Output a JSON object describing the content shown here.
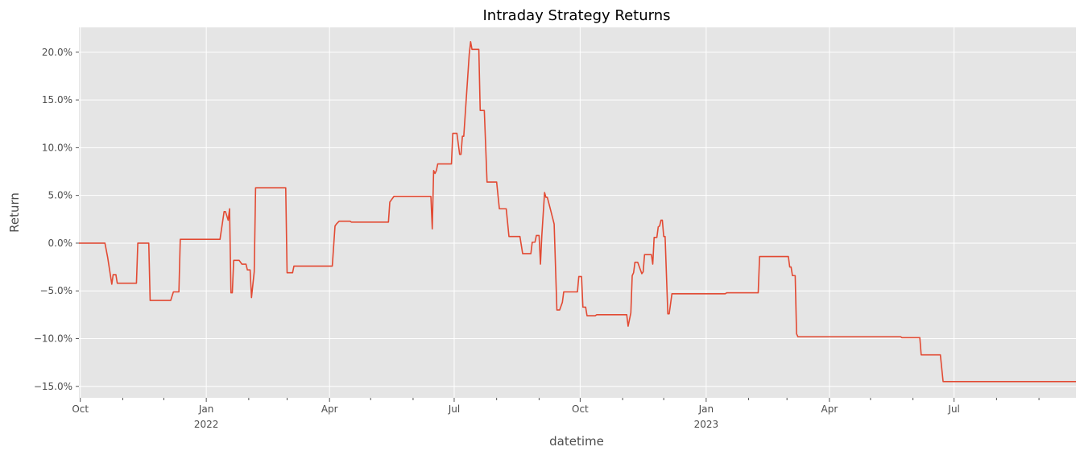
{
  "chart_data": {
    "type": "line",
    "title": "Intraday Strategy Returns",
    "xlabel": "datetime",
    "ylabel": "Return",
    "xlim": [
      "2021-09-30",
      "2023-09-28"
    ],
    "ylim": [
      -0.162,
      0.226
    ],
    "grid": true,
    "background": "#E5E5E5",
    "line_color": "#E24A33",
    "y_ticks": [
      {
        "value": 0.2,
        "label": "20.0%"
      },
      {
        "value": 0.15,
        "label": "15.0%"
      },
      {
        "value": 0.1,
        "label": "10.0%"
      },
      {
        "value": 0.05,
        "label": "5.0%"
      },
      {
        "value": 0.0,
        "label": "0.0%"
      },
      {
        "value": -0.05,
        "label": "−5.0%"
      },
      {
        "value": -0.1,
        "label": "−10.0%"
      },
      {
        "value": -0.15,
        "label": "−15.0%"
      }
    ],
    "x_major_ticks": [
      {
        "date": "2021-10-01",
        "label": "Oct",
        "sublabel": ""
      },
      {
        "date": "2022-01-01",
        "label": "Jan",
        "sublabel": "2022"
      },
      {
        "date": "2022-04-01",
        "label": "Apr",
        "sublabel": ""
      },
      {
        "date": "2022-07-01",
        "label": "Jul",
        "sublabel": ""
      },
      {
        "date": "2022-10-01",
        "label": "Oct",
        "sublabel": ""
      },
      {
        "date": "2023-01-01",
        "label": "Jan",
        "sublabel": "2023"
      },
      {
        "date": "2023-04-01",
        "label": "Apr",
        "sublabel": ""
      },
      {
        "date": "2023-07-01",
        "label": "Jul",
        "sublabel": ""
      }
    ],
    "x_minor_ticks": [
      "2021-11-01",
      "2021-12-01",
      "2022-02-01",
      "2022-03-01",
      "2022-05-01",
      "2022-06-01",
      "2022-08-01",
      "2022-09-01",
      "2022-11-01",
      "2022-12-01",
      "2023-02-01",
      "2023-03-01",
      "2023-05-01",
      "2023-06-01",
      "2023-08-01",
      "2023-09-01"
    ],
    "series": [
      {
        "points": [
          [
            "2021-09-30",
            0.0
          ],
          [
            "2021-10-19",
            0.0
          ],
          [
            "2021-10-21",
            -0.015
          ],
          [
            "2021-10-24",
            -0.043
          ],
          [
            "2021-10-25",
            -0.033
          ],
          [
            "2021-10-27",
            -0.033
          ],
          [
            "2021-10-28",
            -0.042
          ],
          [
            "2021-11-11",
            -0.042
          ],
          [
            "2021-11-12",
            0.0
          ],
          [
            "2021-11-20",
            0.0
          ],
          [
            "2021-11-21",
            -0.06
          ],
          [
            "2021-12-06",
            -0.06
          ],
          [
            "2021-12-08",
            -0.051
          ],
          [
            "2021-12-12",
            -0.051
          ],
          [
            "2021-12-13",
            0.004
          ],
          [
            "2022-01-11",
            0.004
          ],
          [
            "2022-01-14",
            0.033
          ],
          [
            "2022-01-15",
            0.033
          ],
          [
            "2022-01-17",
            0.024
          ],
          [
            "2022-01-18",
            0.036
          ],
          [
            "2022-01-19",
            -0.052
          ],
          [
            "2022-01-20",
            -0.052
          ],
          [
            "2022-01-21",
            -0.018
          ],
          [
            "2022-01-25",
            -0.018
          ],
          [
            "2022-01-27",
            -0.022
          ],
          [
            "2022-01-30",
            -0.022
          ],
          [
            "2022-01-31",
            -0.028
          ],
          [
            "2022-02-02",
            -0.028
          ],
          [
            "2022-02-03",
            -0.057
          ],
          [
            "2022-02-05",
            -0.03
          ],
          [
            "2022-02-06",
            0.058
          ],
          [
            "2022-02-28",
            0.058
          ],
          [
            "2022-03-01",
            -0.031
          ],
          [
            "2022-03-05",
            -0.031
          ],
          [
            "2022-03-06",
            -0.024
          ],
          [
            "2022-04-03",
            -0.024
          ],
          [
            "2022-04-05",
            0.018
          ],
          [
            "2022-04-06",
            0.02
          ],
          [
            "2022-04-08",
            0.023
          ],
          [
            "2022-04-16",
            0.023
          ],
          [
            "2022-04-17",
            0.022
          ],
          [
            "2022-05-14",
            0.022
          ],
          [
            "2022-05-15",
            0.043
          ],
          [
            "2022-05-16",
            0.045
          ],
          [
            "2022-05-18",
            0.049
          ],
          [
            "2022-06-14",
            0.049
          ],
          [
            "2022-06-15",
            0.015
          ],
          [
            "2022-06-16",
            0.076
          ],
          [
            "2022-06-17",
            0.073
          ],
          [
            "2022-06-18",
            0.076
          ],
          [
            "2022-06-19",
            0.083
          ],
          [
            "2022-06-29",
            0.083
          ],
          [
            "2022-06-30",
            0.115
          ],
          [
            "2022-07-03",
            0.115
          ],
          [
            "2022-07-05",
            0.093
          ],
          [
            "2022-07-06",
            0.093
          ],
          [
            "2022-07-07",
            0.112
          ],
          [
            "2022-07-08",
            0.112
          ],
          [
            "2022-07-12",
            0.198
          ],
          [
            "2022-07-13",
            0.211
          ],
          [
            "2022-07-14",
            0.203
          ],
          [
            "2022-07-19",
            0.203
          ],
          [
            "2022-07-20",
            0.139
          ],
          [
            "2022-07-23",
            0.139
          ],
          [
            "2022-07-25",
            0.064
          ],
          [
            "2022-08-01",
            0.064
          ],
          [
            "2022-08-03",
            0.036
          ],
          [
            "2022-08-08",
            0.036
          ],
          [
            "2022-08-10",
            0.007
          ],
          [
            "2022-08-18",
            0.007
          ],
          [
            "2022-08-20",
            -0.011
          ],
          [
            "2022-08-26",
            -0.011
          ],
          [
            "2022-08-27",
            0.001
          ],
          [
            "2022-08-29",
            0.001
          ],
          [
            "2022-08-30",
            0.008
          ],
          [
            "2022-09-01",
            0.008
          ],
          [
            "2022-09-02",
            -0.022
          ],
          [
            "2022-09-03",
            0.008
          ],
          [
            "2022-09-05",
            0.053
          ],
          [
            "2022-09-06",
            0.048
          ],
          [
            "2022-09-07",
            0.048
          ],
          [
            "2022-09-09",
            0.037
          ],
          [
            "2022-09-12",
            0.02
          ],
          [
            "2022-09-14",
            -0.07
          ],
          [
            "2022-09-16",
            -0.07
          ],
          [
            "2022-09-18",
            -0.062
          ],
          [
            "2022-09-19",
            -0.051
          ],
          [
            "2022-09-29",
            -0.051
          ],
          [
            "2022-09-30",
            -0.035
          ],
          [
            "2022-10-02",
            -0.035
          ],
          [
            "2022-10-03",
            -0.067
          ],
          [
            "2022-10-05",
            -0.067
          ],
          [
            "2022-10-06",
            -0.076
          ],
          [
            "2022-10-12",
            -0.076
          ],
          [
            "2022-10-13",
            -0.075
          ],
          [
            "2022-11-04",
            -0.075
          ],
          [
            "2022-11-05",
            -0.087
          ],
          [
            "2022-11-07",
            -0.073
          ],
          [
            "2022-11-08",
            -0.034
          ],
          [
            "2022-11-09",
            -0.031
          ],
          [
            "2022-11-10",
            -0.02
          ],
          [
            "2022-11-12",
            -0.02
          ],
          [
            "2022-11-15",
            -0.032
          ],
          [
            "2022-11-16",
            -0.03
          ],
          [
            "2022-11-17",
            -0.012
          ],
          [
            "2022-11-22",
            -0.012
          ],
          [
            "2022-11-23",
            -0.022
          ],
          [
            "2022-11-24",
            0.006
          ],
          [
            "2022-11-26",
            0.006
          ],
          [
            "2022-11-27",
            0.017
          ],
          [
            "2022-11-28",
            0.018
          ],
          [
            "2022-11-29",
            0.024
          ],
          [
            "2022-11-30",
            0.024
          ],
          [
            "2022-12-01",
            0.007
          ],
          [
            "2022-12-02",
            0.007
          ],
          [
            "2022-12-04",
            -0.074
          ],
          [
            "2022-12-05",
            -0.074
          ],
          [
            "2022-12-07",
            -0.053
          ],
          [
            "2023-01-15",
            -0.053
          ],
          [
            "2023-01-16",
            -0.052
          ],
          [
            "2023-02-08",
            -0.052
          ],
          [
            "2023-02-09",
            -0.014
          ],
          [
            "2023-03-02",
            -0.014
          ],
          [
            "2023-03-03",
            -0.025
          ],
          [
            "2023-03-04",
            -0.025
          ],
          [
            "2023-03-05",
            -0.034
          ],
          [
            "2023-03-07",
            -0.034
          ],
          [
            "2023-03-08",
            -0.095
          ],
          [
            "2023-03-09",
            -0.098
          ],
          [
            "2023-05-23",
            -0.098
          ],
          [
            "2023-05-24",
            -0.099
          ],
          [
            "2023-06-06",
            -0.099
          ],
          [
            "2023-06-07",
            -0.117
          ],
          [
            "2023-06-21",
            -0.117
          ],
          [
            "2023-06-23",
            -0.145
          ],
          [
            "2023-09-28",
            -0.145
          ]
        ]
      }
    ]
  }
}
